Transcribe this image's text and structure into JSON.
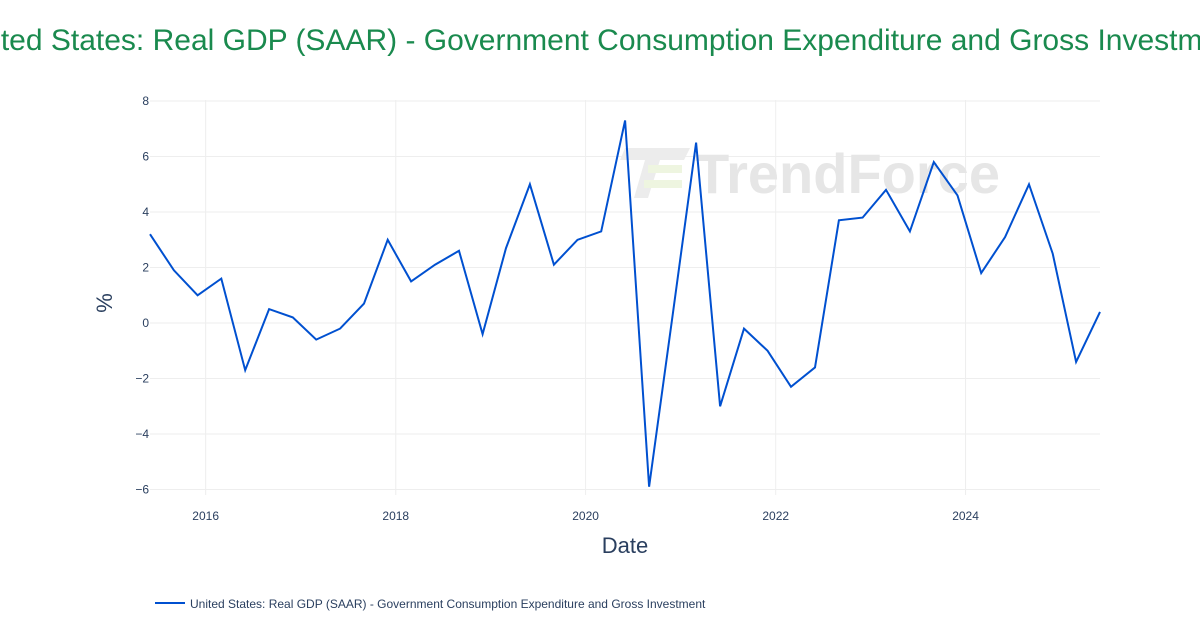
{
  "chart_data": {
    "type": "line",
    "title": "United States: Real GDP (SAAR) - Government Consumption Expenditure and Gross Investment",
    "xlabel": "Date",
    "ylabel": "%",
    "xlim": [
      "2015-06-01",
      "2025-06-01"
    ],
    "ylim": [
      -6.2,
      8
    ],
    "x_ticks": [
      "2016",
      "2018",
      "2020",
      "2022",
      "2024"
    ],
    "y_ticks": [
      -6,
      -4,
      -2,
      0,
      2,
      4,
      6,
      8
    ],
    "grid": true,
    "legend_position": "bottom-left",
    "watermark": "TrendForce",
    "series": [
      {
        "name": "United States: Real GDP (SAAR) - Government Consumption Expenditure and Gross Investment",
        "color": "#0050d0",
        "x": [
          "2015-06-01",
          "2015-09-01",
          "2015-12-01",
          "2016-03-01",
          "2016-06-01",
          "2016-09-01",
          "2016-12-01",
          "2017-03-01",
          "2017-06-01",
          "2017-09-01",
          "2017-12-01",
          "2018-03-01",
          "2018-06-01",
          "2018-09-01",
          "2018-12-01",
          "2019-03-01",
          "2019-06-01",
          "2019-09-01",
          "2019-12-01",
          "2020-03-01",
          "2020-06-01",
          "2020-09-01",
          "2020-12-01",
          "2021-03-01",
          "2021-06-01",
          "2021-09-01",
          "2021-12-01",
          "2022-03-01",
          "2022-06-01",
          "2022-09-01",
          "2022-12-01",
          "2023-03-01",
          "2023-06-01",
          "2023-09-01",
          "2023-12-01",
          "2024-03-01",
          "2024-06-01",
          "2024-09-01",
          "2024-12-01",
          "2025-03-01",
          "2025-06-01"
        ],
        "values": [
          3.2,
          1.9,
          1.0,
          1.6,
          -1.7,
          0.5,
          0.2,
          -0.6,
          -0.2,
          0.7,
          3.0,
          1.5,
          2.1,
          2.6,
          -0.4,
          2.7,
          5.0,
          2.1,
          3.0,
          3.3,
          7.3,
          -5.9,
          0.3,
          6.5,
          -3.0,
          -0.2,
          -1.0,
          -2.3,
          -1.6,
          3.7,
          3.8,
          4.8,
          3.3,
          5.8,
          4.6,
          1.8,
          3.1,
          5.0,
          2.5,
          -1.4,
          0.4
        ]
      }
    ]
  }
}
